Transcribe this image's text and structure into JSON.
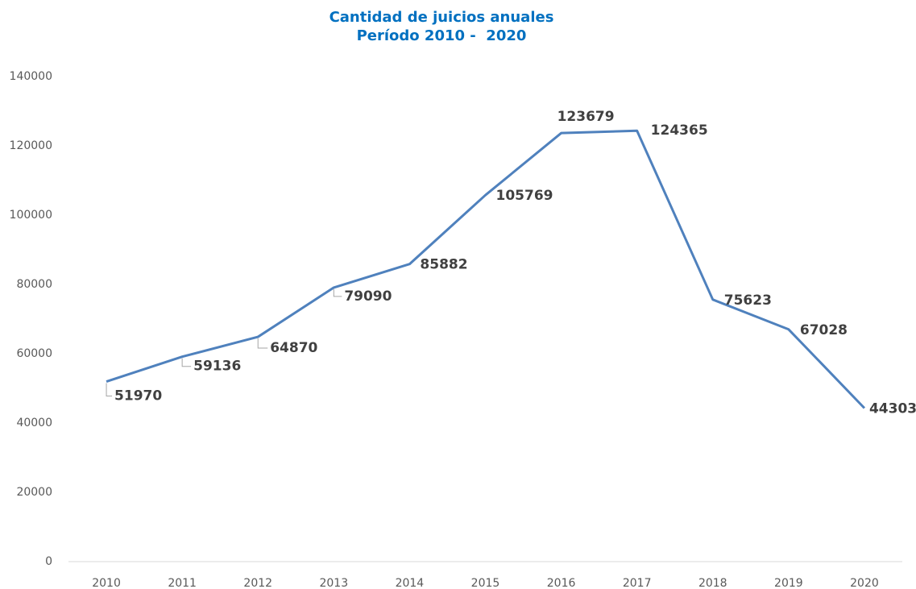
{
  "chart_data": {
    "type": "line",
    "title": [
      "Cantidad de juicios anuales",
      "Período 2010 -  2020"
    ],
    "categories": [
      "2010",
      "2011",
      "2012",
      "2013",
      "2014",
      "2015",
      "2016",
      "2017",
      "2018",
      "2019",
      "2020"
    ],
    "series": [
      {
        "name": "Cantidad de juicios",
        "color": "#4f81bd",
        "values": [
          51970,
          59136,
          64870,
          79090,
          85882,
          105769,
          123679,
          124365,
          75623,
          67028,
          44303
        ]
      }
    ],
    "ylim": [
      0,
      140000
    ],
    "yticks": [
      0,
      20000,
      40000,
      60000,
      80000,
      100000,
      120000,
      140000
    ],
    "grid": false
  }
}
